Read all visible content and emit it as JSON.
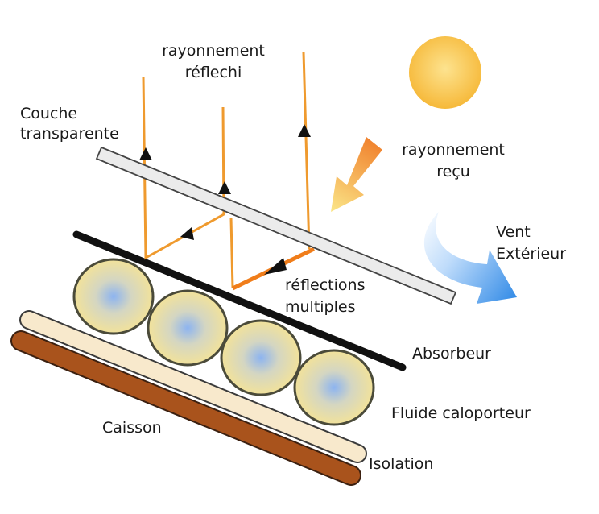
{
  "labels": {
    "reflected_line1": "rayonnement",
    "reflected_line2": "réflechi",
    "transparent_line1": "Couche",
    "transparent_line2": "transparente",
    "received_line1": "rayonnement",
    "received_line2": "reçu",
    "wind_line1": "Vent",
    "wind_line2": "Extérieur",
    "multi_line1": "réflections",
    "multi_line2": "multiples",
    "absorber": "Absorbeur",
    "fluid": "Fluide caloporteur",
    "casing": "Caisson",
    "insulation": "Isolation"
  },
  "colors": {
    "ray": "#ef9a2e",
    "ray_strong": "#f07d1a",
    "absorber": "#111111",
    "glass_fill": "#ebebeb",
    "insulation_fill": "#f8e9cc",
    "casing_fill": "#a9531c",
    "tube_fill": "#f2e29a",
    "tube_center": "#8ab0ee",
    "sun": "#f9c53a",
    "wind": "#3a8fe6"
  }
}
